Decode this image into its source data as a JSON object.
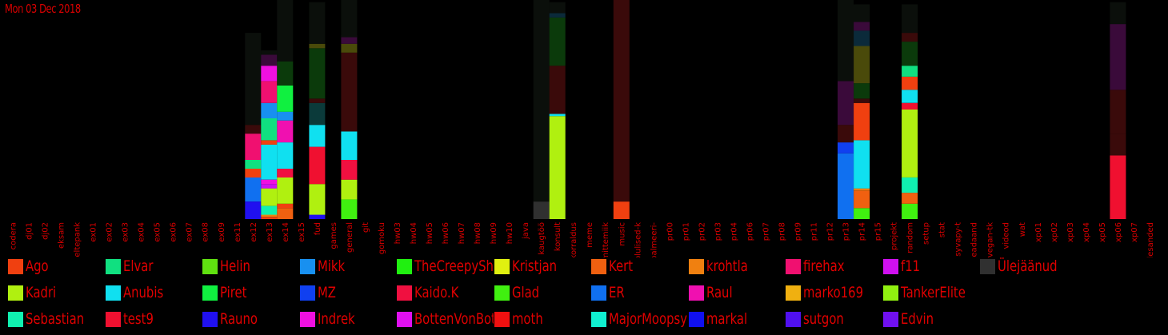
{
  "date": "Mon 03 Dec 2018",
  "colors": {
    "Ago": "#f04010",
    "Elvar": "#10e080",
    "Helin": "#60e010",
    "Mikk": "#1890f0",
    "TheCreepySh": "#20f010",
    "Kristjan": "#e0f010",
    "Kert": "#f06010",
    "krohtla": "#f08010",
    "firehax": "#f01070",
    "f11": "#d010f0",
    "Ülejäänud": "#303030",
    "Kadri": "#b0f010",
    "Anubis": "#10e0f0",
    "Piret": "#10f040",
    "MZ": "#1040f0",
    "Kaido.K": "#f01040",
    "Glad": "#40f010",
    "ER": "#1070f0",
    "Raul": "#f010b0",
    "marko169": "#f0b010",
    "TankerElite": "#90f010",
    "Sebastian": "#10f0b0",
    "test9": "#f01030",
    "Rauno": "#2010f0",
    "Indrek": "#f010e0",
    "BottenVonBot": "#e010f0",
    "moth": "#f01010",
    "MajorMoopsy": "#10f0d0",
    "markal": "#1010f0",
    "sutgon": "#5010f0",
    "Edvin": "#7010f0"
  },
  "chart_data": {
    "type": "bar",
    "stacked": true,
    "ylim": [
      0,
      100
    ],
    "categories": [
      "codera",
      "dj01",
      "dj02",
      "eksam",
      "eltepank",
      "ex01",
      "ex02",
      "ex03",
      "ex04",
      "ex05",
      "ex06",
      "ex07",
      "ex08",
      "ex09",
      "ex11",
      "ex12",
      "ex13",
      "ex14",
      "ex15",
      "fud",
      "games",
      "general",
      "git",
      "gomoku",
      "hw03",
      "hw04",
      "hw05",
      "hw06",
      "hw07",
      "hw08",
      "hw09",
      "hw10",
      "java",
      "kaugtöö",
      "konsult",
      "korraldus",
      "meme",
      "mittemiik",
      "music",
      "olulised-k",
      "palmeeri-",
      "pr00",
      "pr01",
      "pr02",
      "pr03",
      "pr04",
      "pr06",
      "pr07",
      "pr08",
      "pr09",
      "pr11",
      "pr12",
      "pr13",
      "pr14",
      "pr15",
      "projekt",
      "random",
      "setup",
      "stat",
      "syvapy-t",
      "teadaand",
      "vegan-tk",
      "videod",
      "wat",
      "xp01",
      "xp02",
      "xp03",
      "xp04",
      "xp05",
      "xp06",
      "xp07",
      "ülesanded"
    ],
    "series": [
      {
        "name": "Ago"
      },
      {
        "name": "Elvar"
      },
      {
        "name": "Helin"
      },
      {
        "name": "Mikk"
      },
      {
        "name": "TheCreepySh"
      },
      {
        "name": "Kristjan"
      },
      {
        "name": "Kert"
      },
      {
        "name": "krohtla"
      },
      {
        "name": "firehax"
      },
      {
        "name": "f11"
      },
      {
        "name": "Ülejäänud"
      },
      {
        "name": "Kadri"
      },
      {
        "name": "Anubis"
      },
      {
        "name": "Piret"
      },
      {
        "name": "MZ"
      },
      {
        "name": "Kaido.K"
      },
      {
        "name": "Glad"
      },
      {
        "name": "ER"
      },
      {
        "name": "Raul"
      },
      {
        "name": "marko169"
      },
      {
        "name": "TankerElite"
      },
      {
        "name": "Sebastian"
      },
      {
        "name": "test9"
      },
      {
        "name": "Rauno"
      },
      {
        "name": "Indrek"
      },
      {
        "name": "BottenVonBot"
      },
      {
        "name": "moth"
      },
      {
        "name": "MajorMoopsy"
      },
      {
        "name": "markal"
      },
      {
        "name": "sutgon"
      },
      {
        "name": "Edvin"
      }
    ],
    "stacks": {
      "ex12": [
        [
          "Rauno",
          8
        ],
        [
          "ER",
          11
        ],
        [
          "Ago",
          4
        ],
        [
          "Elvar",
          4
        ],
        [
          "firehax",
          12
        ]
      ],
      "ex13": [
        [
          "Ago",
          1
        ],
        [
          "krohtla",
          1
        ],
        [
          "Sebastian",
          4
        ],
        [
          "Kadri",
          8
        ],
        [
          "f11",
          2
        ],
        [
          "Indrek",
          2
        ],
        [
          "Anubis",
          16
        ],
        [
          "Ago",
          2
        ],
        [
          "Elvar",
          10
        ],
        [
          "Mikk",
          7
        ],
        [
          "firehax",
          10
        ],
        [
          "Indrek",
          7
        ]
      ],
      "ex14": [
        [
          "Kert",
          5
        ],
        [
          "Ago",
          2
        ],
        [
          "Kadri",
          12
        ],
        [
          "Kaido.K",
          4
        ],
        [
          "Anubis",
          12
        ],
        [
          "Raul",
          10
        ],
        [
          "Mikk",
          4
        ],
        [
          "Piret",
          12
        ]
      ],
      "fud": [
        [
          "Rauno",
          2
        ],
        [
          "Kadri",
          14
        ],
        [
          "test9",
          17
        ],
        [
          "Anubis",
          10
        ]
      ],
      "general": [
        [
          "Glad",
          9
        ],
        [
          "Kadri",
          9
        ],
        [
          "Kaido.K",
          9
        ],
        [
          "Anubis",
          13
        ]
      ],
      "kaugtöö": [
        [
          "Ülejäänud",
          8
        ]
      ],
      "konsult": [
        [
          "Kadri",
          47
        ],
        [
          "Anubis",
          1
        ]
      ],
      "music": [
        [
          "Ago",
          8
        ]
      ],
      "pr13": [
        [
          "ER",
          30
        ],
        [
          "MZ",
          5
        ]
      ],
      "pr14": [
        [
          "Glad",
          5
        ],
        [
          "Kert",
          8
        ],
        [
          "krohtla",
          1
        ],
        [
          "Anubis",
          22
        ],
        [
          "Ago",
          17
        ]
      ],
      "random": [
        [
          "Glad",
          7
        ],
        [
          "Kert",
          5
        ],
        [
          "Sebastian",
          7
        ],
        [
          "Kadri",
          31
        ],
        [
          "test9",
          3
        ],
        [
          "Anubis",
          6
        ],
        [
          "Ago",
          6
        ],
        [
          "Elvar",
          5
        ]
      ],
      "xp06": [
        [
          "test9",
          29
        ]
      ]
    },
    "dark_segments": {
      "ex12": [
        [
          "#3a0a0a",
          4
        ],
        [
          "#0b0f0b",
          42
        ]
      ],
      "ex13": [
        [
          "#3a0a3a",
          5
        ],
        [
          "#0b0f0b",
          2
        ]
      ],
      "ex14": [
        [
          "#0b3a0b",
          11
        ],
        [
          "#0b0f0b",
          28
        ]
      ],
      "fud": [
        [
          "#0b3a3a",
          10
        ],
        [
          "#3a0a0a",
          2
        ],
        [
          "#0b3a0b",
          23
        ],
        [
          "#4a4a0a",
          2
        ],
        [
          "#0b0f0b",
          19
        ]
      ],
      "general": [
        [
          "#3a0a0a",
          36
        ],
        [
          "#4a4a0a",
          4
        ],
        [
          "#3a0a3a",
          4
        ],
        [
          "#0b0f0b",
          17
        ]
      ],
      "kaugtöö": [
        [
          "#0b0f0b",
          92
        ]
      ],
      "konsult": [
        [
          "#3a0a0a",
          22
        ],
        [
          "#0b3a0b",
          22
        ],
        [
          "#0b2a3a",
          2
        ],
        [
          "#0b0f0b",
          5
        ]
      ],
      "music": [
        [
          "#3a0a0a",
          92
        ]
      ],
      "pr13": [
        [
          "#3a0a0a",
          8
        ],
        [
          "#3a0a3a",
          20
        ],
        [
          "#0b0f0b",
          37
        ]
      ],
      "pr14": [
        [
          "#3a0a0a",
          2
        ],
        [
          "#0b3a0b",
          7
        ],
        [
          "#4a4a0a",
          17
        ],
        [
          "#0b2a3a",
          7
        ],
        [
          "#3a0a3a",
          4
        ],
        [
          "#0b0f0b",
          8
        ]
      ],
      "random": [
        [
          "#0b3a0b",
          11
        ],
        [
          "#3a0a0a",
          4
        ],
        [
          "#0b0f0b",
          13
        ]
      ],
      "xp06": [
        [
          "#3a0a0a",
          10
        ],
        [
          "#3a0a0a",
          20
        ],
        [
          "#3a0a3a",
          30
        ],
        [
          "#0b0f0b",
          10
        ]
      ]
    },
    "legend_position": "bottom",
    "grid": false
  }
}
